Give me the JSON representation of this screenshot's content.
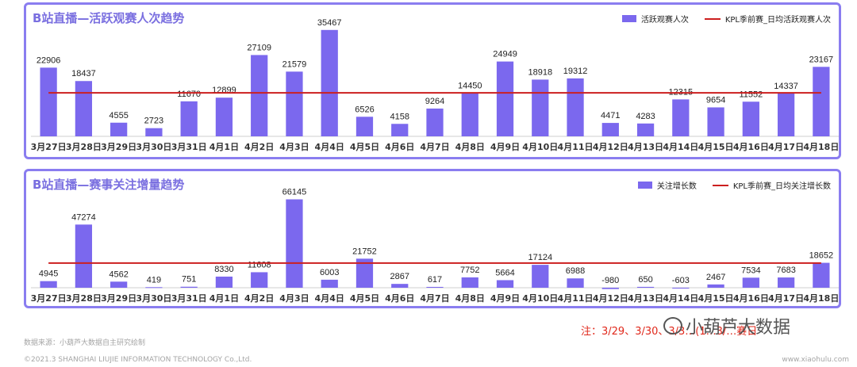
{
  "chart_data": [
    {
      "type": "bar",
      "title": "B站直播—活跃观赛人次趋势",
      "categories": [
        "3月27日",
        "3月28日",
        "3月29日",
        "3月30日",
        "3月31日",
        "4月1日",
        "4月2日",
        "4月3日",
        "4月4日",
        "4月5日",
        "4月6日",
        "4月7日",
        "4月8日",
        "4月9日",
        "4月10日",
        "4月11日",
        "4月12日",
        "4月13日",
        "4月14日",
        "4月15日",
        "4月16日",
        "4月17日",
        "4月18日"
      ],
      "series": [
        {
          "name": "活跃观赛人次",
          "type": "bar",
          "values": [
            22906,
            18437,
            4555,
            2723,
            11670,
            12899,
            27109,
            21579,
            35467,
            6526,
            4158,
            9264,
            14450,
            24949,
            18918,
            19312,
            4471,
            4283,
            12315,
            9654,
            11552,
            14337,
            23167
          ]
        },
        {
          "name": "KPL季前赛_日均活跃观赛人次",
          "type": "line",
          "value": 14500
        }
      ],
      "ylim": [
        0,
        37000
      ],
      "bar_color": "#7b68ee",
      "line_color": "#cc1f1f",
      "legend": "top-right"
    },
    {
      "type": "bar",
      "title": "B站直播—赛事关注增量趋势",
      "categories": [
        "3月27日",
        "3月28日",
        "3月29日",
        "3月30日",
        "3月31日",
        "4月1日",
        "4月2日",
        "4月3日",
        "4月4日",
        "4月5日",
        "4月6日",
        "4月7日",
        "4月8日",
        "4月9日",
        "4月10日",
        "4月11日",
        "4月12日",
        "4月13日",
        "4月14日",
        "4月15日",
        "4月16日",
        "4月17日",
        "4月18日"
      ],
      "series": [
        {
          "name": "关注增长数",
          "type": "bar",
          "values": [
            4945,
            47274,
            4562,
            419,
            751,
            8330,
            11608,
            66145,
            6003,
            21752,
            2867,
            617,
            7752,
            5664,
            17124,
            6988,
            -980,
            650,
            -603,
            2467,
            7534,
            7683,
            18652
          ]
        },
        {
          "name": "KPL季前赛_日均关注增长数",
          "type": "line",
          "value": 18500
        }
      ],
      "ylim": [
        -2000,
        68000
      ],
      "bar_color": "#7b68ee",
      "line_color": "#cc1f1f",
      "legend": "top-right"
    }
  ],
  "footer": {
    "source": "数据来源：小葫芦大数据自主研究绘制",
    "copyright": "©2021.3 SHANGHAI LIUJIE INFORMATION TECHNOLOGY Co.,Ltd.",
    "website": "www.xiaohulu.com",
    "note": "注：3/29、3/30、3/3…(1…3/…赛日",
    "watermark": "小葫芦大数据",
    "watermark_icon": "wechat-icon"
  }
}
